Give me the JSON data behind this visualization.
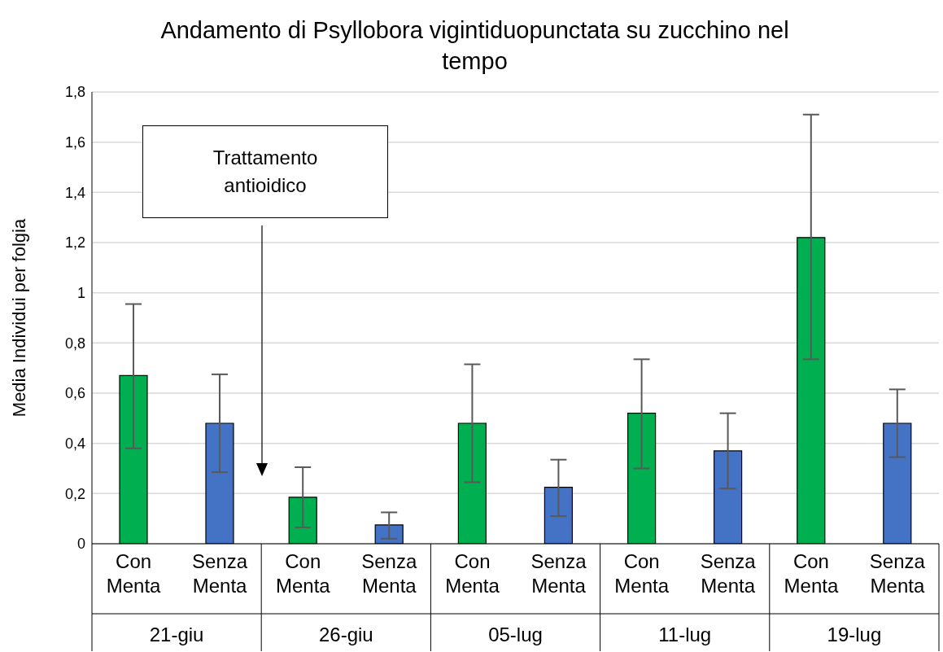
{
  "chart_data": {
    "type": "bar",
    "title": "Andamento di Psyllobora vigintiduopunctata su zucchino nel tempo",
    "ylabel": "Media Individui per folgia",
    "categories": [
      "21-giu",
      "26-giu",
      "05-lug",
      "11-lug",
      "19-lug"
    ],
    "series": [
      {
        "name": "Con Menta",
        "color": "#00b050",
        "values": [
          0.67,
          0.185,
          0.48,
          0.52,
          1.22
        ],
        "errors": [
          [
            0.38,
            0.955
          ],
          [
            0.065,
            0.305
          ],
          [
            0.245,
            0.715
          ],
          [
            0.3,
            0.735
          ],
          [
            0.735,
            1.71
          ]
        ]
      },
      {
        "name": "Senza Menta",
        "color": "#4472c4",
        "values": [
          0.48,
          0.075,
          0.225,
          0.37,
          0.48
        ],
        "errors": [
          [
            0.285,
            0.675
          ],
          [
            0.02,
            0.125
          ],
          [
            0.11,
            0.335
          ],
          [
            0.22,
            0.52
          ],
          [
            0.345,
            0.615
          ]
        ]
      }
    ],
    "ylim": [
      0,
      1.8
    ],
    "yticks": [
      0,
      {
        "value": 0.2,
        "label": "0,2"
      },
      {
        "value": 0.4,
        "label": "0,4"
      },
      {
        "value": 0.6,
        "label": "0,6"
      },
      {
        "value": 0.8,
        "label": "0,8"
      },
      1,
      {
        "value": 1.2,
        "label": "1,2"
      },
      {
        "value": 1.4,
        "label": "1,4"
      },
      {
        "value": 1.6,
        "label": "1,6"
      },
      {
        "value": 1.8,
        "label": "1,8"
      }
    ],
    "grid": "y",
    "legend": false,
    "annotations": [
      "Trattamento antioidico"
    ]
  }
}
